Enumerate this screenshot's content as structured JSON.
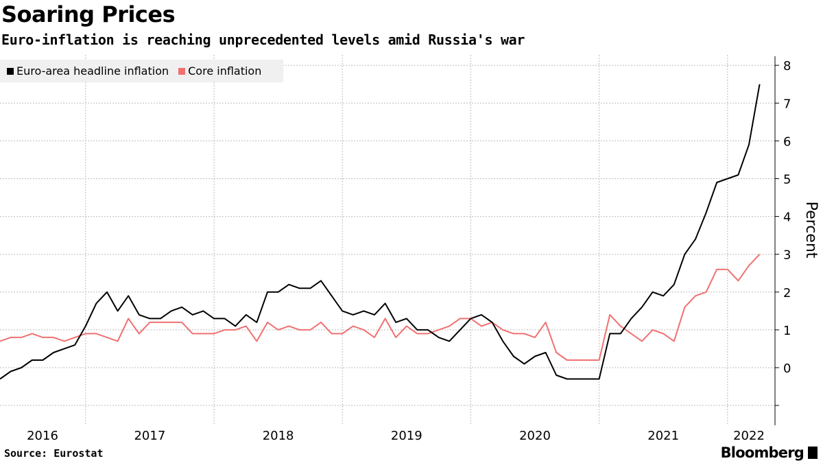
{
  "title": "Soaring Prices",
  "subtitle": "Euro-inflation is reaching unprecedented levels amid Russia's war",
  "source": "Source: Eurostat",
  "logo": "Bloomberg",
  "colors": {
    "headline": "#000000",
    "core": "#f07070",
    "grid": "#bbbbbb",
    "legend_bg": "#f0f0f0"
  },
  "chart_data": {
    "type": "line",
    "title": "Soaring Prices",
    "ylabel": "Percent",
    "ylim": [
      -1,
      8
    ],
    "yticks": [
      0,
      1,
      2,
      3,
      4,
      5,
      6,
      7,
      8
    ],
    "xlim": [
      "2016-04",
      "2022-03"
    ],
    "xtick_labels": [
      "2016",
      "2017",
      "2018",
      "2019",
      "2020",
      "2021",
      "2022"
    ],
    "grid": true,
    "legend_placement": "top-left",
    "x_start": "2016-04",
    "x_frequency": "monthly",
    "series": [
      {
        "name": "Euro-area headline inflation",
        "color": "#000000",
        "values": [
          -0.3,
          -0.1,
          0.0,
          0.2,
          0.2,
          0.4,
          0.5,
          0.6,
          1.1,
          1.7,
          2.0,
          1.5,
          1.9,
          1.4,
          1.3,
          1.3,
          1.5,
          1.6,
          1.4,
          1.5,
          1.3,
          1.3,
          1.1,
          1.4,
          1.2,
          2.0,
          2.0,
          2.2,
          2.1,
          2.1,
          2.3,
          1.9,
          1.5,
          1.4,
          1.5,
          1.4,
          1.7,
          1.2,
          1.3,
          1.0,
          1.0,
          0.8,
          0.7,
          1.0,
          1.3,
          1.4,
          1.2,
          0.7,
          0.3,
          0.1,
          0.3,
          0.4,
          -0.2,
          -0.3,
          -0.3,
          -0.3,
          -0.3,
          0.9,
          0.9,
          1.3,
          1.6,
          2.0,
          1.9,
          2.2,
          3.0,
          3.4,
          4.1,
          4.9,
          5.0,
          5.1,
          5.9,
          7.5
        ]
      },
      {
        "name": "Core inflation",
        "color": "#f07070",
        "values": [
          0.7,
          0.8,
          0.8,
          0.9,
          0.8,
          0.8,
          0.7,
          0.8,
          0.9,
          0.9,
          0.8,
          0.7,
          1.3,
          0.9,
          1.2,
          1.2,
          1.2,
          1.2,
          0.9,
          0.9,
          0.9,
          1.0,
          1.0,
          1.1,
          0.7,
          1.2,
          1.0,
          1.1,
          1.0,
          1.0,
          1.2,
          0.9,
          0.9,
          1.1,
          1.0,
          0.8,
          1.3,
          0.8,
          1.1,
          0.9,
          0.9,
          1.0,
          1.1,
          1.3,
          1.3,
          1.1,
          1.2,
          1.0,
          0.9,
          0.9,
          0.8,
          1.2,
          0.4,
          0.2,
          0.2,
          0.2,
          0.2,
          1.4,
          1.1,
          0.9,
          0.7,
          1.0,
          0.9,
          0.7,
          1.6,
          1.9,
          2.0,
          2.6,
          2.6,
          2.3,
          2.7,
          3.0
        ]
      }
    ]
  }
}
